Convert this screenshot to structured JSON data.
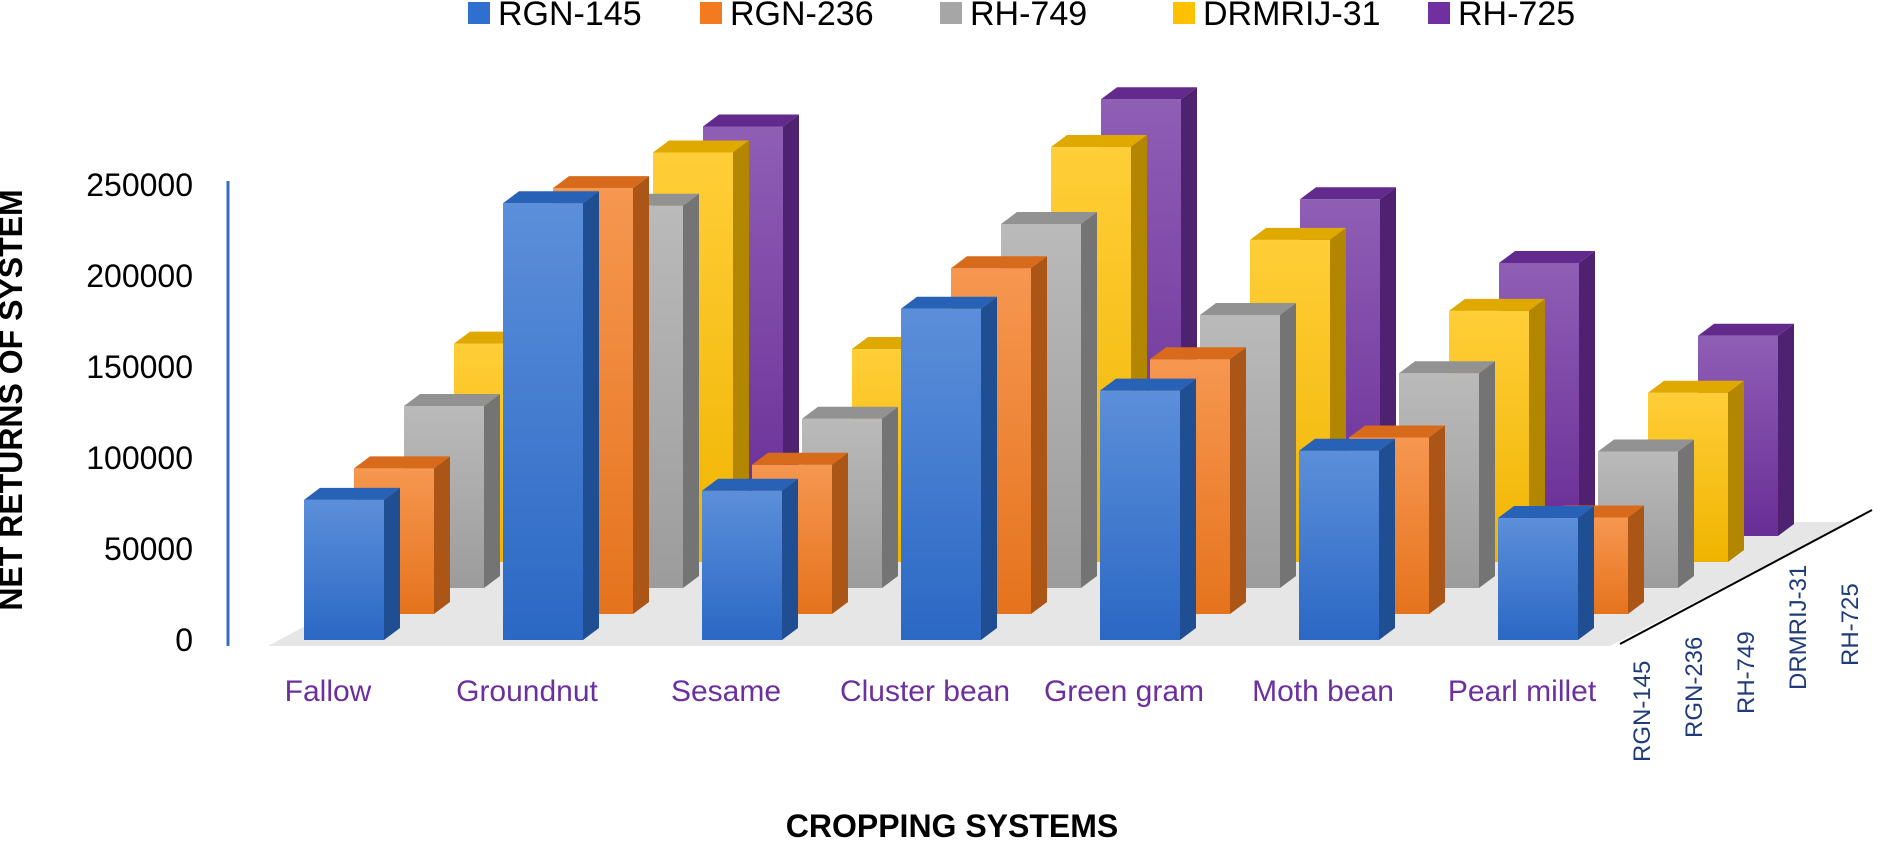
{
  "chart_data": {
    "type": "bar",
    "variant": "3d-column",
    "categories": [
      "Fallow",
      "Groundnut",
      "Sesame",
      "Cluster bean",
      "Green gram",
      "Moth bean",
      "Pearl millet"
    ],
    "series": [
      {
        "name": "RGN-145",
        "color": "#2e6fd0",
        "values": [
          77000,
          240000,
          82000,
          182000,
          137000,
          104000,
          67000
        ]
      },
      {
        "name": "RGN-236",
        "color": "#f47a1f",
        "values": [
          80000,
          234000,
          82000,
          190000,
          140000,
          97000,
          53000
        ]
      },
      {
        "name": "RH-749",
        "color": "#a6a6a6",
        "values": [
          100000,
          210000,
          93000,
          200000,
          150000,
          118000,
          75000
        ]
      },
      {
        "name": "DRMRIJ-31",
        "color": "#ffc000",
        "values": [
          120000,
          225000,
          117000,
          228000,
          177000,
          138000,
          93000
        ]
      },
      {
        "name": "RH-725",
        "color": "#7030a0",
        "values": [
          80000,
          225000,
          80000,
          240000,
          185000,
          150000,
          110000
        ]
      }
    ],
    "ylabel": "NET RETURNS OF SYSTEM",
    "xlabel": "CROPPING SYSTEMS",
    "yticks": [
      "250000",
      "200000",
      "150000",
      "100000",
      "50000",
      "0"
    ],
    "ylim": [
      0,
      250000
    ],
    "depth_labels": [
      "RGN-145",
      "RGN-236",
      "RH-749",
      "DRMRIJ-31",
      "RH-725"
    ],
    "legend_position": "top",
    "grid": false
  }
}
